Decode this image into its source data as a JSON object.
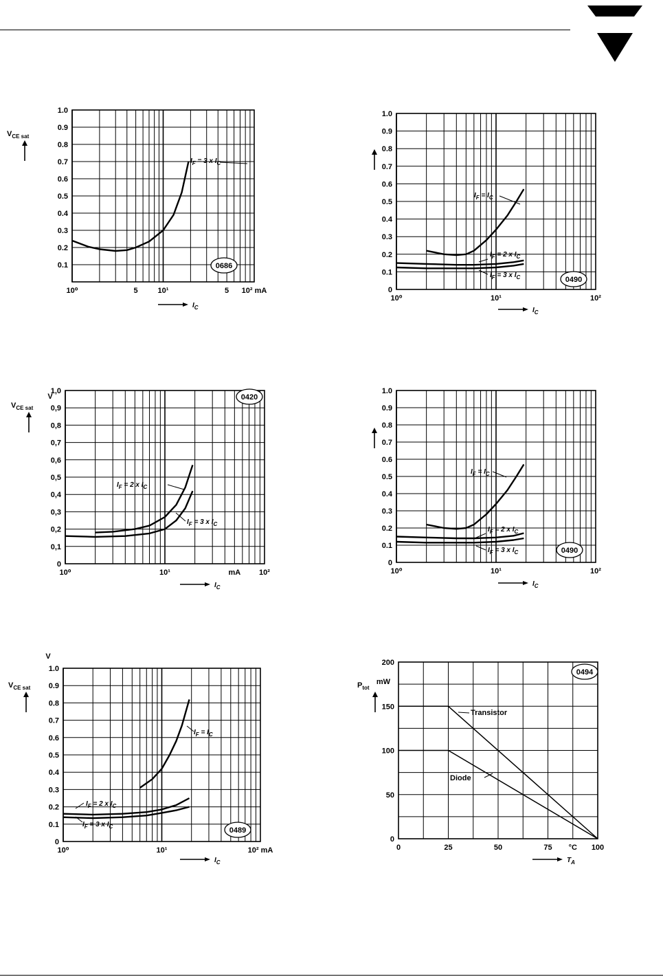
{
  "colors": {
    "ink": "#000000",
    "paper": "#ffffff"
  },
  "header": {
    "logo": "vishay-triangle-logo"
  },
  "chart_data": [
    {
      "id": "c1",
      "type": "line",
      "xscale": "log",
      "xlim": [
        1,
        100
      ],
      "ylim": [
        0,
        1.0
      ],
      "xticks": [
        {
          "v": 1,
          "t": "10⁰"
        },
        {
          "v": 5,
          "t": "5"
        },
        {
          "v": 10,
          "t": "10¹"
        },
        {
          "v": 50,
          "t": "5"
        },
        {
          "v": 100,
          "t": "10² mA"
        }
      ],
      "yticks": [
        {
          "v": 0.1,
          "t": "0.1"
        },
        {
          "v": 0.2,
          "t": "0.2"
        },
        {
          "v": 0.3,
          "t": "0.3"
        },
        {
          "v": 0.4,
          "t": "0.4"
        },
        {
          "v": 0.5,
          "t": "0.5"
        },
        {
          "v": 0.6,
          "t": "0.6"
        },
        {
          "v": 0.7,
          "t": "0.7"
        },
        {
          "v": 0.8,
          "t": "0.8"
        },
        {
          "v": 0.9,
          "t": "0.9"
        },
        {
          "v": 1.0,
          "t": "1.0"
        }
      ],
      "ylabel": "V",
      "ylabel_sub": "CE sat",
      "xlabel": "I",
      "xlabel_sub": "C",
      "badge": "0686",
      "series": [
        {
          "name": "IF = 3 x IC",
          "label": "I",
          "label_sub": "F",
          "label_rest": " = 3 x I",
          "label_rest_sub": "C",
          "x": [
            1.0,
            1.5,
            2.0,
            3.0,
            4.0,
            5.0,
            7.0,
            10.0,
            13.0,
            16.0,
            19.0
          ],
          "y": [
            0.24,
            0.205,
            0.19,
            0.18,
            0.185,
            0.2,
            0.235,
            0.3,
            0.39,
            0.52,
            0.7
          ]
        }
      ]
    },
    {
      "id": "c2",
      "type": "line",
      "xscale": "log",
      "xlim": [
        1,
        100
      ],
      "ylim": [
        0,
        1.0
      ],
      "xticks": [
        {
          "v": 1,
          "t": "10⁰"
        },
        {
          "v": 10,
          "t": "10¹"
        },
        {
          "v": 100,
          "t": "10²"
        }
      ],
      "yticks": [
        {
          "v": 0,
          "t": "0"
        },
        {
          "v": 0.1,
          "t": "0.1"
        },
        {
          "v": 0.2,
          "t": "0.2"
        },
        {
          "v": 0.3,
          "t": "0.3"
        },
        {
          "v": 0.4,
          "t": "0.4"
        },
        {
          "v": 0.5,
          "t": "0.5"
        },
        {
          "v": 0.6,
          "t": "0.6"
        },
        {
          "v": 0.7,
          "t": "0.7"
        },
        {
          "v": 0.8,
          "t": "0.8"
        },
        {
          "v": 0.9,
          "t": "0.9"
        },
        {
          "v": 1.0,
          "t": "1.0"
        }
      ],
      "ylabel": "",
      "ylabel_sub": "",
      "xlabel": "I",
      "xlabel_sub": "C",
      "badge": "0490",
      "series": [
        {
          "name": "IF = IC",
          "label": "I",
          "label_sub": "F",
          "label_rest": " = I",
          "label_rest_sub": "C",
          "x": [
            2.0,
            3.0,
            4.0,
            5.0,
            6.0,
            8.0,
            10.0,
            13.0,
            16.0,
            19.0
          ],
          "y": [
            0.22,
            0.2,
            0.195,
            0.2,
            0.22,
            0.28,
            0.34,
            0.42,
            0.5,
            0.57
          ]
        },
        {
          "name": "IF = 2 x IC",
          "label": "I",
          "label_sub": "F",
          "label_rest": " = 2 x I",
          "label_rest_sub": "C",
          "x": [
            1.0,
            2.0,
            4.0,
            6.0,
            10.0,
            15.0,
            19.0
          ],
          "y": [
            0.15,
            0.145,
            0.14,
            0.14,
            0.145,
            0.155,
            0.165
          ]
        },
        {
          "name": "IF = 3 x IC",
          "label": "I",
          "label_sub": "F",
          "label_rest": " = 3 x I",
          "label_rest_sub": "C",
          "x": [
            1.0,
            2.0,
            4.0,
            6.0,
            10.0,
            15.0,
            19.0
          ],
          "y": [
            0.125,
            0.12,
            0.12,
            0.12,
            0.125,
            0.135,
            0.145
          ]
        }
      ]
    },
    {
      "id": "c3",
      "type": "line",
      "xscale": "log",
      "xlim": [
        1,
        100
      ],
      "ylim": [
        0,
        1.0
      ],
      "xticks": [
        {
          "v": 1,
          "t": "10⁰"
        },
        {
          "v": 10,
          "t": "10¹"
        },
        {
          "v": 50,
          "t": "mA"
        },
        {
          "v": 100,
          "t": "10²"
        }
      ],
      "yticks": [
        {
          "v": 0,
          "t": "0"
        },
        {
          "v": 0.1,
          "t": "0,1"
        },
        {
          "v": 0.2,
          "t": "0,2"
        },
        {
          "v": 0.3,
          "t": "0,3"
        },
        {
          "v": 0.4,
          "t": "0,4"
        },
        {
          "v": 0.5,
          "t": "0,5"
        },
        {
          "v": 0.6,
          "t": "0,6"
        },
        {
          "v": 0.7,
          "t": "0,7"
        },
        {
          "v": 0.8,
          "t": "0,8"
        },
        {
          "v": 0.9,
          "t": "0,9"
        },
        {
          "v": 1.0,
          "t": "1,0"
        }
      ],
      "ylabel": "V",
      "ylabel_sub": "CE sat",
      "yunit": "V",
      "xlabel": "I",
      "xlabel_sub": "C",
      "badge": "0420",
      "series": [
        {
          "name": "IF = 2 x IC",
          "label": "I",
          "label_sub": "F",
          "label_rest": " = 2 x I",
          "label_rest_sub": "C",
          "x": [
            2.0,
            3.0,
            5.0,
            7.0,
            10.0,
            13.0,
            16.0,
            19.0
          ],
          "y": [
            0.18,
            0.185,
            0.2,
            0.22,
            0.27,
            0.34,
            0.44,
            0.57
          ]
        },
        {
          "name": "IF = 3 x IC",
          "label": "I",
          "label_sub": "F",
          "label_rest": " = 3 x I",
          "label_rest_sub": "C",
          "x": [
            1.0,
            2.0,
            4.0,
            7.0,
            10.0,
            13.0,
            16.0,
            19.0
          ],
          "y": [
            0.16,
            0.155,
            0.16,
            0.175,
            0.2,
            0.25,
            0.32,
            0.42
          ]
        }
      ]
    },
    {
      "id": "c4",
      "type": "line",
      "xscale": "log",
      "xlim": [
        1,
        100
      ],
      "ylim": [
        0,
        1.0
      ],
      "xticks": [
        {
          "v": 1,
          "t": "10⁰"
        },
        {
          "v": 10,
          "t": "10¹"
        },
        {
          "v": 100,
          "t": "10²"
        }
      ],
      "yticks": [
        {
          "v": 0,
          "t": "0"
        },
        {
          "v": 0.1,
          "t": "0.1"
        },
        {
          "v": 0.2,
          "t": "0.2"
        },
        {
          "v": 0.3,
          "t": "0.3"
        },
        {
          "v": 0.4,
          "t": "0.4"
        },
        {
          "v": 0.5,
          "t": "0.5"
        },
        {
          "v": 0.6,
          "t": "0.6"
        },
        {
          "v": 0.7,
          "t": "0.7"
        },
        {
          "v": 0.8,
          "t": "0.8"
        },
        {
          "v": 0.9,
          "t": "0.9"
        },
        {
          "v": 1.0,
          "t": "1.0"
        }
      ],
      "ylabel": "",
      "ylabel_sub": "",
      "xlabel": "I",
      "xlabel_sub": "C",
      "badge": "0490",
      "series": [
        {
          "name": "IF = IC",
          "label": "I",
          "label_sub": "F",
          "label_rest": " = I",
          "label_rest_sub": "C",
          "x": [
            2.0,
            3.0,
            4.0,
            5.0,
            6.0,
            8.0,
            10.0,
            13.0,
            16.0,
            19.0
          ],
          "y": [
            0.22,
            0.2,
            0.195,
            0.2,
            0.22,
            0.28,
            0.34,
            0.42,
            0.5,
            0.57
          ]
        },
        {
          "name": "IF = 2 x IC",
          "label": "I",
          "label_sub": "F",
          "label_rest": " = 2 x I",
          "label_rest_sub": "C",
          "x": [
            1.0,
            2.0,
            4.0,
            6.0,
            10.0,
            15.0,
            19.0
          ],
          "y": [
            0.15,
            0.145,
            0.14,
            0.14,
            0.145,
            0.155,
            0.17
          ]
        },
        {
          "name": "IF = 3 x IC",
          "label": "I",
          "label_sub": "F",
          "label_rest": " = 3 x I",
          "label_rest_sub": "C",
          "x": [
            1.0,
            2.0,
            4.0,
            6.0,
            10.0,
            15.0,
            19.0
          ],
          "y": [
            0.12,
            0.115,
            0.115,
            0.115,
            0.12,
            0.13,
            0.14
          ]
        }
      ]
    },
    {
      "id": "c5",
      "type": "line",
      "xscale": "log",
      "xlim": [
        1,
        100
      ],
      "ylim": [
        0,
        1.0
      ],
      "xticks": [
        {
          "v": 1,
          "t": "10⁰"
        },
        {
          "v": 10,
          "t": "10¹"
        },
        {
          "v": 100,
          "t": "10² mA"
        }
      ],
      "yticks": [
        {
          "v": 0,
          "t": "0"
        },
        {
          "v": 0.1,
          "t": "0.1"
        },
        {
          "v": 0.2,
          "t": "0.2"
        },
        {
          "v": 0.3,
          "t": "0.3"
        },
        {
          "v": 0.4,
          "t": "0.4"
        },
        {
          "v": 0.5,
          "t": "0.5"
        },
        {
          "v": 0.6,
          "t": "0.6"
        },
        {
          "v": 0.7,
          "t": "0.7"
        },
        {
          "v": 0.8,
          "t": "0.8"
        },
        {
          "v": 0.9,
          "t": "0.9"
        },
        {
          "v": 1.0,
          "t": "1.0"
        }
      ],
      "ylabel": "V",
      "ylabel_sub": "CE sat",
      "yunit": "V",
      "xlabel": "I",
      "xlabel_sub": "C",
      "badge": "0489",
      "series": [
        {
          "name": "IF = IC",
          "label": "I",
          "label_sub": "F",
          "label_rest": " = I",
          "label_rest_sub": "C",
          "x": [
            6.0,
            8.0,
            10.0,
            12.0,
            14.0,
            16.0,
            19.0
          ],
          "y": [
            0.31,
            0.36,
            0.42,
            0.5,
            0.58,
            0.67,
            0.82
          ]
        },
        {
          "name": "IF = 2 x IC",
          "label": "I",
          "label_sub": "F",
          "label_rest": " = 2 x I",
          "label_rest_sub": "C",
          "x": [
            1.0,
            2.0,
            4.0,
            7.0,
            10.0,
            14.0,
            19.0
          ],
          "y": [
            0.16,
            0.155,
            0.16,
            0.17,
            0.185,
            0.21,
            0.25
          ]
        },
        {
          "name": "IF = 3 x IC",
          "label": "I",
          "label_sub": "F",
          "label_rest": " = 3 x I",
          "label_rest_sub": "C",
          "x": [
            1.0,
            2.0,
            4.0,
            7.0,
            10.0,
            14.0,
            19.0
          ],
          "y": [
            0.14,
            0.135,
            0.14,
            0.15,
            0.165,
            0.18,
            0.2
          ]
        }
      ]
    },
    {
      "id": "c6",
      "type": "line",
      "xscale": "linear",
      "xlim": [
        0,
        100
      ],
      "ylim": [
        0,
        200
      ],
      "xticks": [
        {
          "v": 0,
          "t": "0"
        },
        {
          "v": 25,
          "t": "25"
        },
        {
          "v": 50,
          "t": "50"
        },
        {
          "v": 75,
          "t": "75"
        },
        {
          "v": 87.5,
          "t": "°C"
        },
        {
          "v": 100,
          "t": "100"
        }
      ],
      "yticks": [
        {
          "v": 0,
          "t": "0"
        },
        {
          "v": 50,
          "t": "50"
        },
        {
          "v": 100,
          "t": "100"
        },
        {
          "v": 150,
          "t": "150"
        },
        {
          "v": 200,
          "t": "200"
        }
      ],
      "ylabel": "P",
      "ylabel_sub": "tot",
      "yunit": "mW",
      "xlabel": "T",
      "xlabel_sub": "A",
      "badge": "0494",
      "series": [
        {
          "name": "Transistor",
          "label": "Transistor",
          "x": [
            0,
            25,
            100
          ],
          "y": [
            150,
            150,
            0
          ]
        },
        {
          "name": "Diode",
          "label": "Diode",
          "x": [
            0,
            25,
            100
          ],
          "y": [
            100,
            100,
            0
          ]
        }
      ]
    }
  ]
}
